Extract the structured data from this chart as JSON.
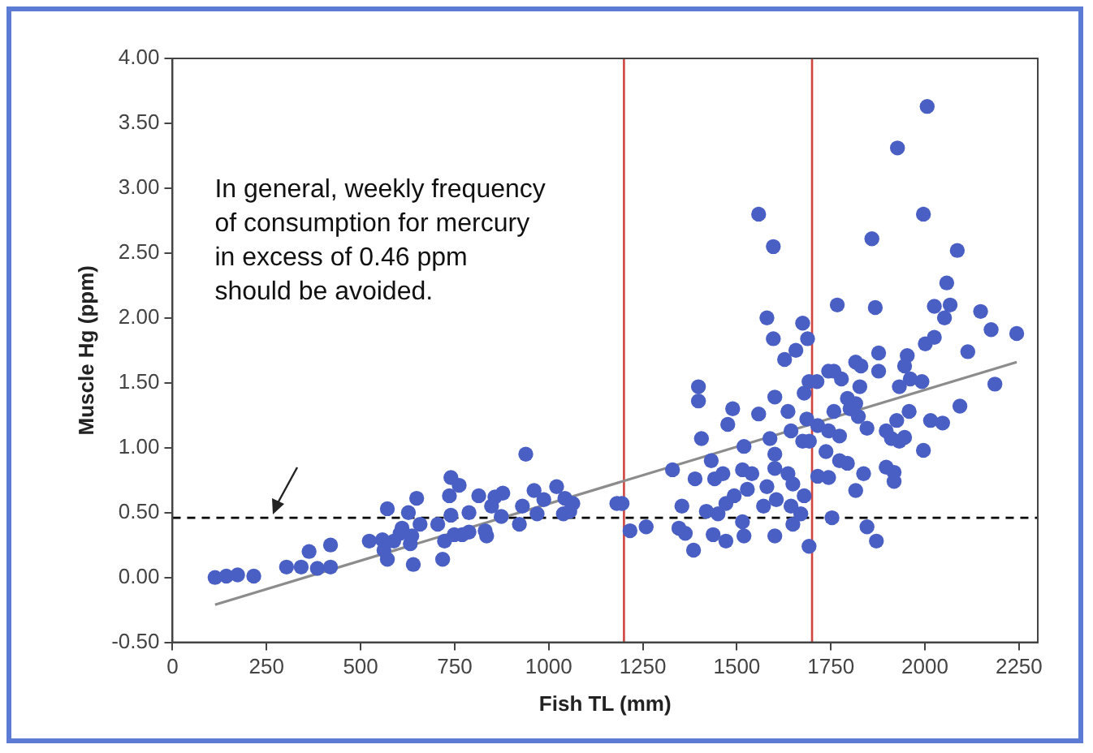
{
  "chart_data": {
    "type": "scatter",
    "xlabel": "Fish TL (mm)",
    "ylabel": "Muscle Hg (ppm)",
    "xlim": [
      0,
      2300
    ],
    "xticks": [
      0,
      250,
      500,
      750,
      1000,
      1250,
      1500,
      1750,
      2000,
      2250
    ],
    "ylim": [
      -0.5,
      4
    ],
    "yticks": [
      {
        "value": -0.5,
        "label": "-0.50"
      },
      {
        "value": 0,
        "label": "0.00"
      },
      {
        "value": 0.5,
        "label": "0.50"
      },
      {
        "value": 1,
        "label": "1.00"
      },
      {
        "value": 1.5,
        "label": "1.50"
      },
      {
        "value": 2,
        "label": "2.00"
      },
      {
        "value": 2.5,
        "label": "2.50"
      },
      {
        "value": 3,
        "label": "3.00"
      },
      {
        "value": 3.5,
        "label": "3.50"
      },
      {
        "value": 4,
        "label": "4.00"
      }
    ],
    "grid": false,
    "legend": false,
    "marker": "circle",
    "series": [
      {
        "color": "#4a5fc4",
        "x": [
          113,
          143,
          173,
          216,
          303,
          342,
          363,
          385,
          420,
          420,
          523,
          558,
          571,
          571,
          562,
          588,
          605,
          610,
          627,
          632,
          640,
          649,
          658,
          636,
          705,
          718,
          723,
          736,
          740,
          762,
          740,
          749,
          770,
          788,
          788,
          814,
          831,
          835,
          848,
          857,
          878,
          874,
          922,
          930,
          939,
          961,
          969,
          987,
          1021,
          1043,
          1039,
          1064,
          1056,
          1181,
          1195,
          1216,
          1259,
          1329,
          1354,
          1346,
          1363,
          1385,
          1398,
          1398,
          1389,
          1406,
          1419,
          1432,
          1441,
          1437,
          1463,
          1471,
          1471,
          1476,
          1489,
          1493,
          1450,
          1519,
          1515,
          1515,
          1528,
          1519,
          1540,
          1558,
          1558,
          1580,
          1580,
          1571,
          1588,
          1597,
          1597,
          1601,
          1601,
          1601,
          1605,
          1601,
          1627,
          1636,
          1636,
          1644,
          1649,
          1644,
          1657,
          1649,
          1670,
          1675,
          1679,
          1675,
          1679,
          1688,
          1692,
          1692,
          2006,
          1927,
          1996,
          1859,
          2086,
          2058,
          1767,
          1868,
          2025,
          2067,
          2052,
          2148,
          2176,
          2244,
          2114,
          2186,
          2093,
          2001,
          2025,
          1877,
          1877,
          1953,
          1946,
          1932,
          1961,
          1992,
          1816,
          1830,
          1744,
          1758,
          1778,
          1713,
          1827,
          1794,
          1816,
          1758,
          1801,
          1686,
          1715,
          1744,
          1773,
          1823,
          1846,
          1897,
          1925,
          1958,
          2015,
          2047,
          1911,
          1932,
          1946,
          1996,
          1693,
          1737,
          1773,
          1794,
          1715,
          1744,
          1837,
          1897,
          1918,
          1918,
          1816,
          1753,
          1846,
          1871
        ],
        "values": [
          0.0,
          0.01,
          0.02,
          0.01,
          0.08,
          0.08,
          0.2,
          0.07,
          0.08,
          0.25,
          0.28,
          0.29,
          0.53,
          0.14,
          0.21,
          0.28,
          0.34,
          0.38,
          0.5,
          0.26,
          0.1,
          0.61,
          0.41,
          0.32,
          0.41,
          0.14,
          0.28,
          0.63,
          0.77,
          0.71,
          0.48,
          0.33,
          0.33,
          0.35,
          0.5,
          0.63,
          0.36,
          0.32,
          0.55,
          0.62,
          0.65,
          0.47,
          0.41,
          0.55,
          0.95,
          0.67,
          0.49,
          0.6,
          0.7,
          0.61,
          0.49,
          0.57,
          0.51,
          0.57,
          0.57,
          0.36,
          0.39,
          0.83,
          0.55,
          0.38,
          0.34,
          0.21,
          1.47,
          1.36,
          0.76,
          1.07,
          0.51,
          0.9,
          0.76,
          0.33,
          0.8,
          0.57,
          0.28,
          1.18,
          1.3,
          0.63,
          0.49,
          1.01,
          0.83,
          0.43,
          0.68,
          0.32,
          0.8,
          1.26,
          2.8,
          2.0,
          0.7,
          0.55,
          1.07,
          2.55,
          1.84,
          1.39,
          0.95,
          0.84,
          0.6,
          0.32,
          1.68,
          1.28,
          0.8,
          1.13,
          0.72,
          0.55,
          1.75,
          0.41,
          0.49,
          1.96,
          1.42,
          1.05,
          0.63,
          1.84,
          1.51,
          0.24,
          3.63,
          3.31,
          2.8,
          2.61,
          2.52,
          2.27,
          2.1,
          2.08,
          2.09,
          2.1,
          2.0,
          2.05,
          1.91,
          1.88,
          1.74,
          1.49,
          1.32,
          1.8,
          1.85,
          1.73,
          1.59,
          1.71,
          1.63,
          1.47,
          1.53,
          1.51,
          1.66,
          1.63,
          1.59,
          1.59,
          1.53,
          1.51,
          1.47,
          1.38,
          1.34,
          1.28,
          1.3,
          1.22,
          1.17,
          1.13,
          1.09,
          1.24,
          1.15,
          1.13,
          1.21,
          1.28,
          1.21,
          1.19,
          1.07,
          1.05,
          1.08,
          0.98,
          1.05,
          0.97,
          0.9,
          0.88,
          0.78,
          0.77,
          0.8,
          0.85,
          0.81,
          0.74,
          0.67,
          0.46,
          0.39,
          0.28
        ]
      },
      {
        "type": "line",
        "color": "#8c8c8c",
        "line_style": "solid",
        "marker": "none",
        "x": [
          113,
          2244
        ],
        "values": [
          -0.21,
          1.66
        ]
      }
    ],
    "ref_lines": [
      {
        "axis": "y",
        "value": 0.46,
        "color": "#000000",
        "line_style": "dashed"
      },
      {
        "axis": "x",
        "value": 1200,
        "color": "#d0453f",
        "line_style": "solid"
      },
      {
        "axis": "x",
        "value": 1700,
        "color": "#d0453f",
        "line_style": "solid"
      }
    ],
    "annotations": [
      "In general, weekly frequency of consumption for mercury in excess of 0.46 ppm should be avoided."
    ]
  }
}
